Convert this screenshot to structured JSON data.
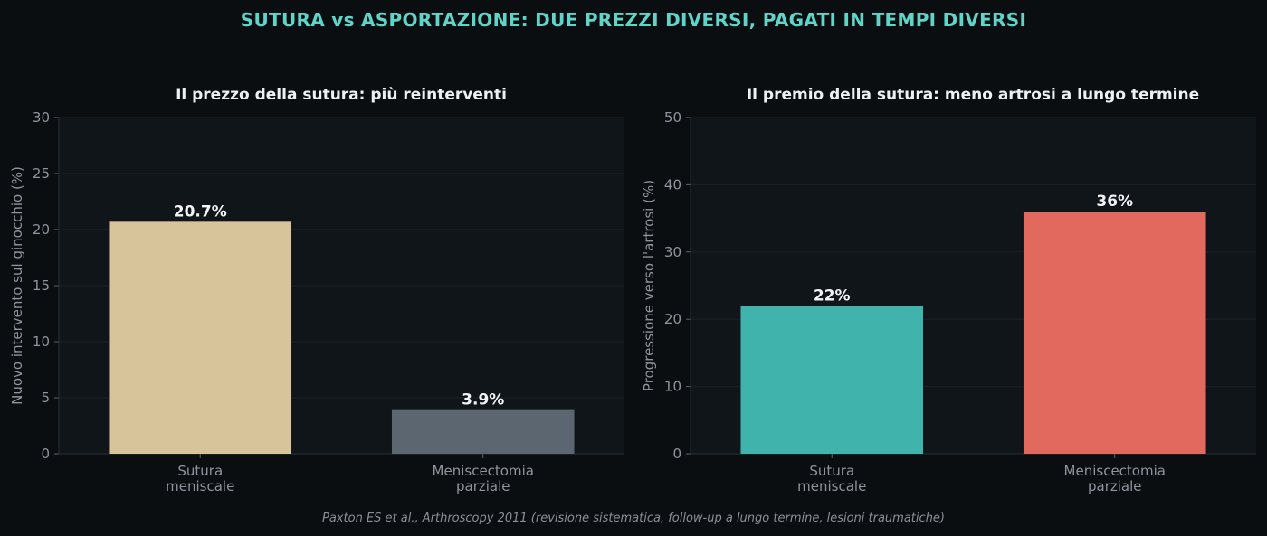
{
  "title": "SUTURA vs ASPORTAZIONE: DUE PREZZI DIVERSI, PAGATI IN TEMPI DIVERSI",
  "source": "Paxton ES et al., Arthroscopy 2011 (revisione sistematica, follow-up a lungo termine, lesioni traumatiche)",
  "chart_data": [
    {
      "type": "bar",
      "title": "Il prezzo della sutura: più reinterventi",
      "ylabel": "Nuovo intervento sul ginocchio (%)",
      "xlabel": "",
      "ylim": [
        0,
        30
      ],
      "yticks": [
        0,
        5,
        10,
        15,
        20,
        25,
        30
      ],
      "categories": [
        [
          "Sutura",
          "meniscale"
        ],
        [
          "Meniscectomia",
          "parziale"
        ]
      ],
      "values": [
        20.7,
        3.9
      ],
      "value_labels": [
        "20.7%",
        "3.9%"
      ],
      "colors": [
        "#d8c49a",
        "#5c6670"
      ],
      "grid": true
    },
    {
      "type": "bar",
      "title": "Il premio della sutura: meno artrosi a lungo termine",
      "ylabel": "Progressione verso l'artrosi (%)",
      "xlabel": "",
      "ylim": [
        0,
        50
      ],
      "yticks": [
        0,
        10,
        20,
        30,
        40,
        50
      ],
      "categories": [
        [
          "Sutura",
          "meniscale"
        ],
        [
          "Meniscectomia",
          "parziale"
        ]
      ],
      "values": [
        22,
        36
      ],
      "value_labels": [
        "22%",
        "36%"
      ],
      "colors": [
        "#3fb3ac",
        "#e2695e"
      ],
      "grid": true
    }
  ]
}
